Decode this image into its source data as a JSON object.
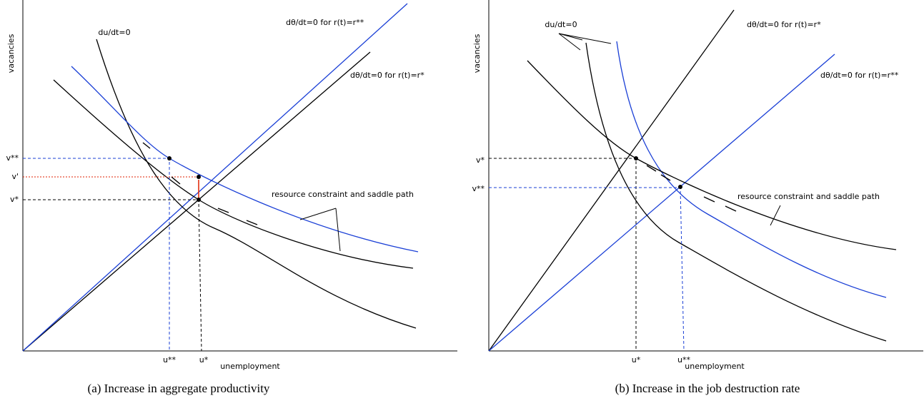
{
  "panels": [
    {
      "y_axis_label": "vacancies",
      "x_axis_label": "unemployment",
      "curve_labels": [
        "du/dt=0",
        "dθ/dt=0 for r(t)=r**",
        "dθ/dt=0 for r(t)=r*",
        "resource constraint and saddle path"
      ],
      "y_ticks": [
        "v**",
        "v'",
        "v*"
      ],
      "x_ticks": [
        "u**",
        "u*"
      ],
      "caption": "(a) Increase in aggregate productivity"
    },
    {
      "y_axis_label": "vacancies",
      "x_axis_label": "unemployment",
      "curve_labels": [
        "du/dt=0",
        "dθ/dt=0 for r(t)=r*",
        "dθ/dt=0 for r(t)=r**",
        "resource constraint and saddle path"
      ],
      "y_ticks": [
        "v*",
        "v**"
      ],
      "x_ticks": [
        "u*",
        "u**"
      ],
      "caption": "(b) Increase in the job destruction rate"
    }
  ]
}
